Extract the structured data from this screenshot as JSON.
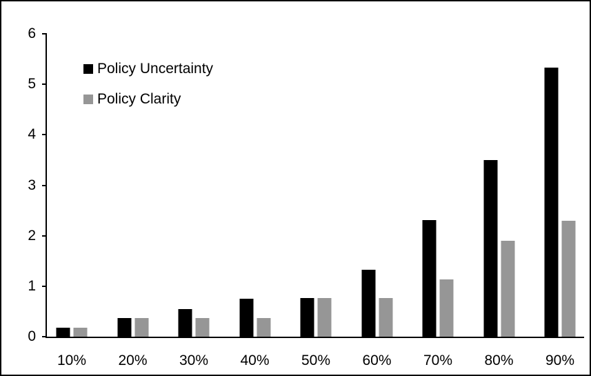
{
  "chart_data": {
    "type": "bar",
    "title": "",
    "xlabel": "",
    "ylabel": "",
    "categories": [
      "10%",
      "20%",
      "30%",
      "40%",
      "50%",
      "60%",
      "70%",
      "80%",
      "90%"
    ],
    "series": [
      {
        "name": "Policy Uncertainty",
        "color": "#000000",
        "values": [
          0.18,
          0.37,
          0.55,
          0.75,
          0.77,
          1.33,
          2.31,
          3.5,
          5.33
        ]
      },
      {
        "name": "Policy Clarity",
        "color": "#969696",
        "values": [
          0.18,
          0.37,
          0.37,
          0.37,
          0.76,
          0.77,
          1.14,
          1.9,
          2.3
        ]
      }
    ],
    "ylim": [
      0,
      6
    ],
    "yticks": [
      0,
      1,
      2,
      3,
      4,
      5,
      6
    ],
    "grid": false,
    "legend_position": "inside-top-left",
    "frame_border_color": "#000000",
    "background_color": "#ffffff"
  }
}
